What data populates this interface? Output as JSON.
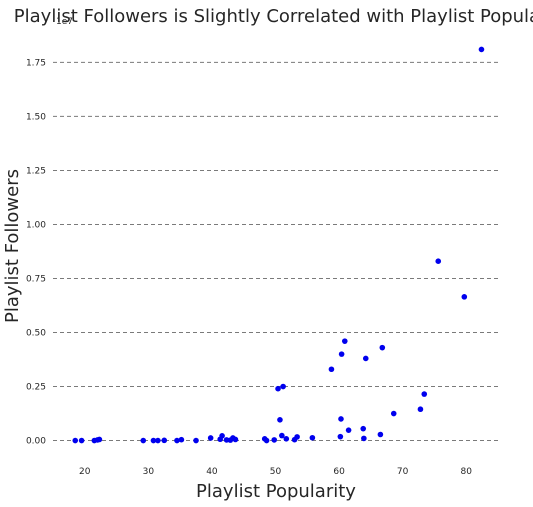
{
  "chart_data": {
    "type": "scatter",
    "title": "Playlist Followers is Slightly Correlated with Playlist Popularity",
    "xlabel": "Playlist Popularity",
    "ylabel": "Playlist Followers",
    "y_offset_label": "1e7",
    "xlim": [
      15,
      85
    ],
    "ylim": [
      -0.09,
      1.9
    ],
    "grid": "horizontal dashed",
    "point_color": "#0000ee",
    "x_ticks": [
      {
        "value": 20,
        "label": "20"
      },
      {
        "value": 30,
        "label": "30"
      },
      {
        "value": 40,
        "label": "40"
      },
      {
        "value": 50,
        "label": "50"
      },
      {
        "value": 60,
        "label": "60"
      },
      {
        "value": 70,
        "label": "70"
      },
      {
        "value": 80,
        "label": "80"
      }
    ],
    "y_ticks": [
      {
        "value": 0.0,
        "label": "0.00"
      },
      {
        "value": 0.25,
        "label": "0.25"
      },
      {
        "value": 0.5,
        "label": "0.50"
      },
      {
        "value": 0.75,
        "label": "0.75"
      },
      {
        "value": 1.0,
        "label": "1.00"
      },
      {
        "value": 1.25,
        "label": "1.25"
      },
      {
        "value": 1.5,
        "label": "1.50"
      },
      {
        "value": 1.75,
        "label": "1.75"
      }
    ],
    "points": [
      {
        "x": 18.5,
        "y": 0.0
      },
      {
        "x": 19.5,
        "y": 0.0
      },
      {
        "x": 21.5,
        "y": 0.0
      },
      {
        "x": 22.0,
        "y": 0.003
      },
      {
        "x": 22.3,
        "y": 0.005
      },
      {
        "x": 29.2,
        "y": 0.0
      },
      {
        "x": 30.8,
        "y": 0.0
      },
      {
        "x": 31.5,
        "y": 0.0
      },
      {
        "x": 32.5,
        "y": 0.001
      },
      {
        "x": 34.5,
        "y": 0.0
      },
      {
        "x": 35.2,
        "y": 0.004
      },
      {
        "x": 37.5,
        "y": 0.0
      },
      {
        "x": 39.8,
        "y": 0.012
      },
      {
        "x": 41.3,
        "y": 0.006
      },
      {
        "x": 41.6,
        "y": 0.022
      },
      {
        "x": 42.3,
        "y": 0.003
      },
      {
        "x": 42.9,
        "y": 0.002
      },
      {
        "x": 43.3,
        "y": 0.012
      },
      {
        "x": 43.7,
        "y": 0.005
      },
      {
        "x": 48.3,
        "y": 0.008
      },
      {
        "x": 48.6,
        "y": 0.0
      },
      {
        "x": 49.8,
        "y": 0.003
      },
      {
        "x": 50.4,
        "y": 0.24
      },
      {
        "x": 50.7,
        "y": 0.096
      },
      {
        "x": 51.0,
        "y": 0.023
      },
      {
        "x": 51.2,
        "y": 0.25
      },
      {
        "x": 51.7,
        "y": 0.008
      },
      {
        "x": 53.0,
        "y": 0.004
      },
      {
        "x": 53.4,
        "y": 0.017
      },
      {
        "x": 55.8,
        "y": 0.013
      },
      {
        "x": 58.8,
        "y": 0.33
      },
      {
        "x": 60.2,
        "y": 0.018
      },
      {
        "x": 60.3,
        "y": 0.1
      },
      {
        "x": 60.4,
        "y": 0.4
      },
      {
        "x": 60.9,
        "y": 0.46
      },
      {
        "x": 61.5,
        "y": 0.048
      },
      {
        "x": 63.8,
        "y": 0.055
      },
      {
        "x": 63.9,
        "y": 0.01
      },
      {
        "x": 64.2,
        "y": 0.38
      },
      {
        "x": 66.5,
        "y": 0.028
      },
      {
        "x": 66.8,
        "y": 0.43
      },
      {
        "x": 68.6,
        "y": 0.125
      },
      {
        "x": 72.8,
        "y": 0.145
      },
      {
        "x": 73.4,
        "y": 0.215
      },
      {
        "x": 75.6,
        "y": 0.83
      },
      {
        "x": 79.7,
        "y": 0.665
      },
      {
        "x": 82.4,
        "y": 1.81
      }
    ]
  }
}
